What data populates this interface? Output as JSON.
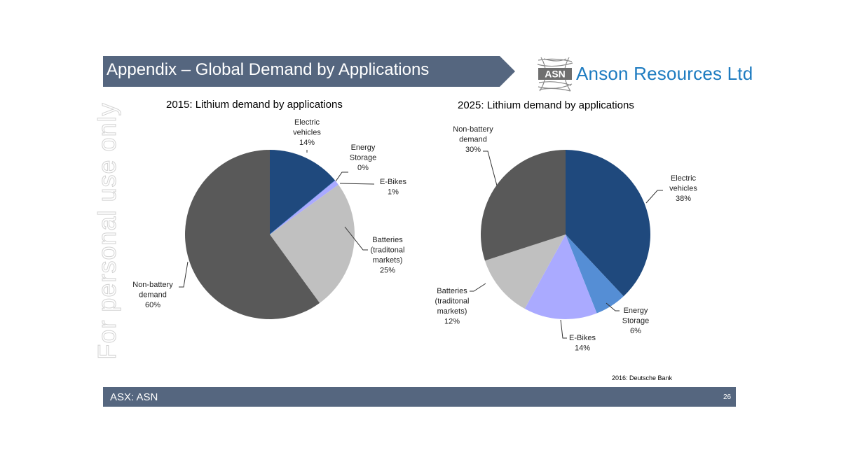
{
  "header": {
    "title": "Appendix – Global Demand by Applications"
  },
  "logo": {
    "mark": "ASN",
    "company": "Anson Resources Ltd"
  },
  "watermark": "For personal use only",
  "colors": {
    "banner": "#55667f",
    "electric_vehicles": "#1f497d",
    "energy_storage": "#558ed5",
    "e_bikes": "#aaaaff",
    "batteries": "#c0c0c0",
    "non_battery": "#595959"
  },
  "chart_data": [
    {
      "type": "pie",
      "title": "2015: Lithium demand by applications",
      "slices": [
        {
          "name": "Electric vehicles",
          "label": [
            "Electric",
            "vehicles"
          ],
          "value": 14,
          "value_label": "14%",
          "color": "#1f497d"
        },
        {
          "name": "Energy Storage",
          "label": [
            "Energy",
            "Storage"
          ],
          "value": 0,
          "value_label": "0%",
          "color": "#558ed5"
        },
        {
          "name": "E-Bikes",
          "label": [
            "E-Bikes"
          ],
          "value": 1,
          "value_label": "1%",
          "color": "#aaaaff"
        },
        {
          "name": "Batteries (traditonal markets)",
          "label": [
            "Batteries",
            "(traditonal",
            "markets)"
          ],
          "value": 25,
          "value_label": "25%",
          "color": "#c0c0c0"
        },
        {
          "name": "Non-battery demand",
          "label": [
            "Non-battery",
            "demand"
          ],
          "value": 60,
          "value_label": "60%",
          "color": "#595959"
        }
      ]
    },
    {
      "type": "pie",
      "title": "2025: Lithium demand by applications",
      "slices": [
        {
          "name": "Electric vehicles",
          "label": [
            "Electric",
            "vehicles"
          ],
          "value": 38,
          "value_label": "38%",
          "color": "#1f497d"
        },
        {
          "name": "Energy Storage",
          "label": [
            "Energy",
            "Storage"
          ],
          "value": 6,
          "value_label": "6%",
          "color": "#558ed5"
        },
        {
          "name": "E-Bikes",
          "label": [
            "E-Bikes"
          ],
          "value": 14,
          "value_label": "14%",
          "color": "#aaaaff"
        },
        {
          "name": "Batteries (traditonal markets)",
          "label": [
            "Batteries",
            "(traditonal",
            "markets)"
          ],
          "value": 12,
          "value_label": "12%",
          "color": "#c0c0c0"
        },
        {
          "name": "Non-battery demand",
          "label": [
            "Non-battery",
            "demand"
          ],
          "value": 30,
          "value_label": "30%",
          "color": "#595959"
        }
      ]
    }
  ],
  "source": "2016: Deutsche Bank",
  "footer": {
    "ticker": "ASX: ASN",
    "page": "26"
  }
}
